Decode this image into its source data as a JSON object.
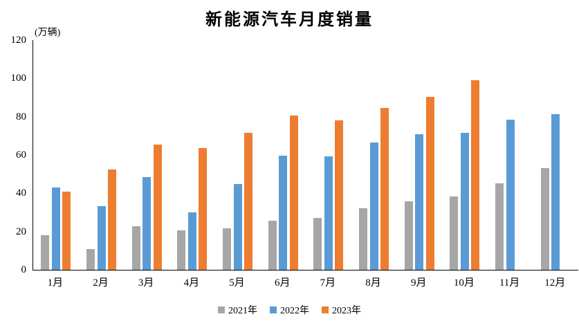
{
  "title": "新能源汽车月度销量",
  "chart_data": {
    "type": "bar",
    "title": "新能源汽车月度销量",
    "ylabel": "(万辆)",
    "xlabel": "",
    "categories": [
      "1月",
      "2月",
      "3月",
      "4月",
      "5月",
      "6月",
      "7月",
      "8月",
      "9月",
      "10月",
      "11月",
      "12月"
    ],
    "series": [
      {
        "name": "2021年",
        "color": "#A6A6A6",
        "values": [
          17.9,
          11.0,
          22.6,
          20.6,
          21.7,
          25.6,
          27.1,
          32.1,
          35.7,
          38.3,
          45.0,
          53.1
        ]
      },
      {
        "name": "2022年",
        "color": "#5B9BD5",
        "values": [
          43.1,
          33.4,
          48.4,
          29.9,
          44.7,
          59.6,
          59.3,
          66.6,
          70.8,
          71.4,
          78.6,
          81.4
        ]
      },
      {
        "name": "2023年",
        "color": "#ED7D31",
        "values": [
          40.8,
          52.5,
          65.3,
          63.6,
          71.7,
          80.6,
          78.0,
          84.6,
          90.4,
          98.9,
          null,
          null
        ]
      }
    ],
    "ylim": [
      0,
      120
    ],
    "yticks": [
      0,
      20,
      40,
      60,
      80,
      100,
      120
    ],
    "grid": false,
    "legend_position": "bottom",
    "axis_color": "#000000",
    "background_color": "#ffffff"
  }
}
